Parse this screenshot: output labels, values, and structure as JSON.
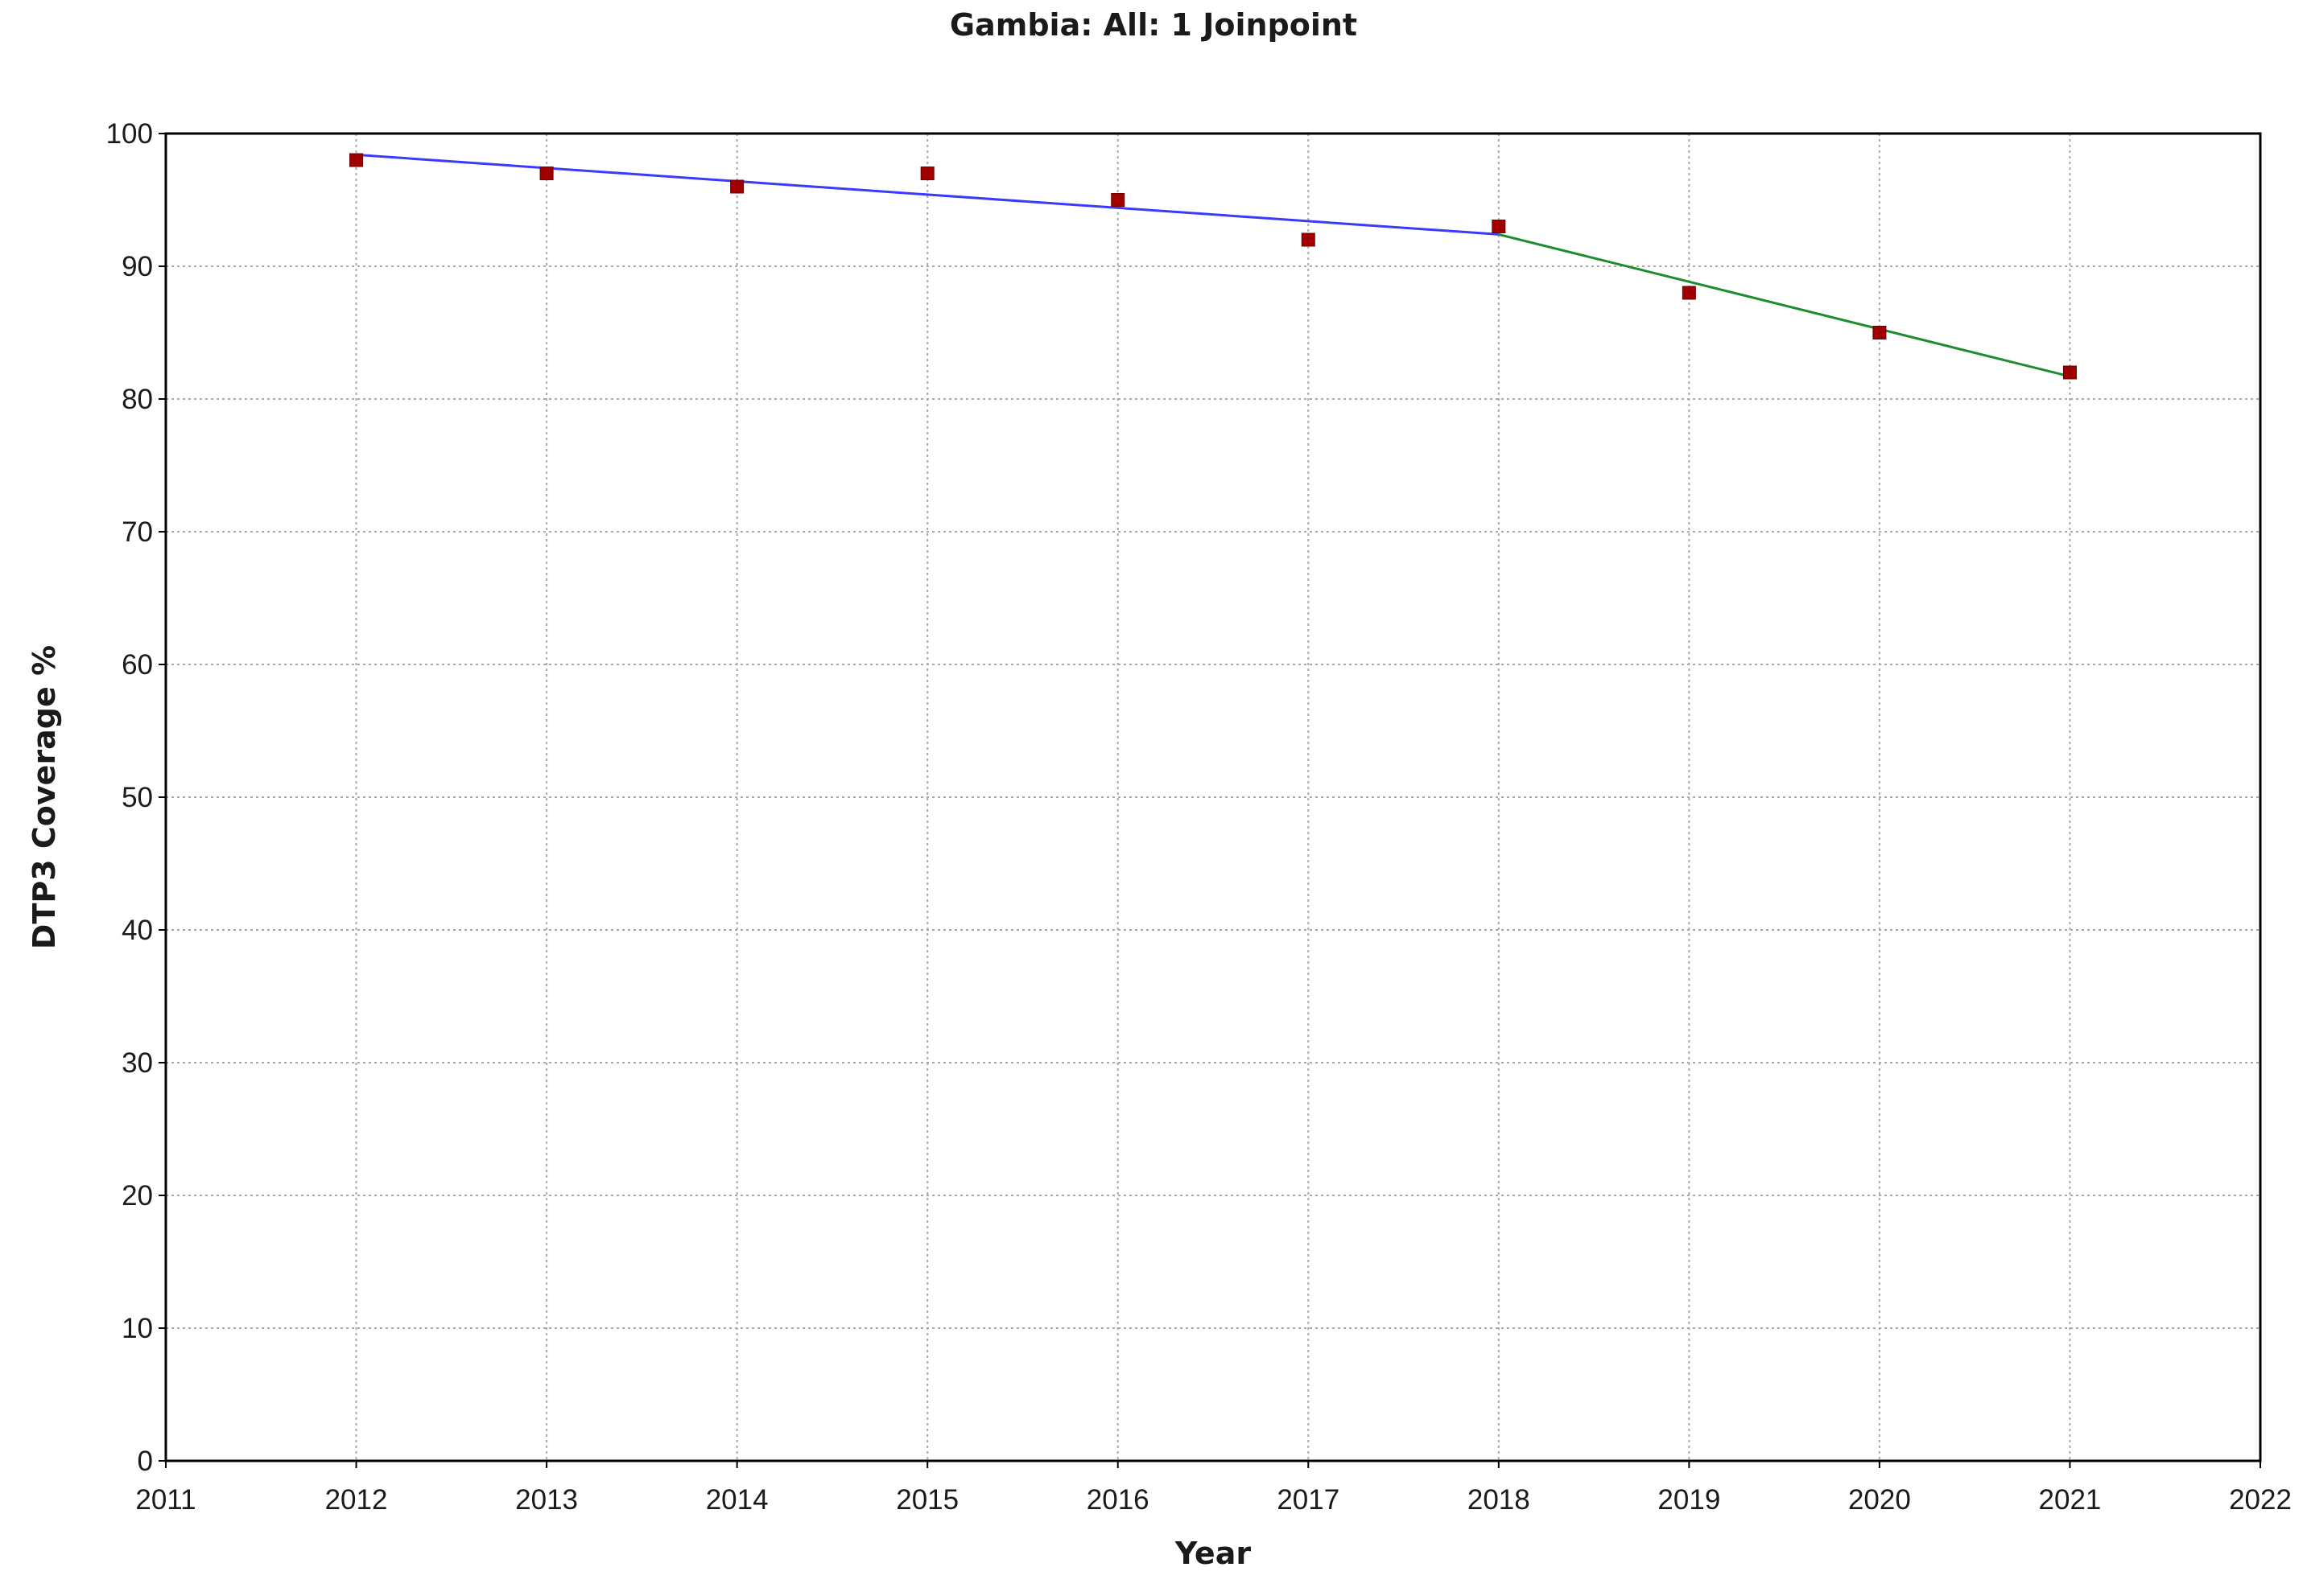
{
  "chart_data": {
    "type": "line",
    "title": "Gambia: All: 1 Joinpoint",
    "xlabel": "Year",
    "ylabel": "DTP3 Coverage %",
    "xlim": [
      2011,
      2022
    ],
    "ylim": [
      0,
      100
    ],
    "x_ticks": [
      2011,
      2012,
      2013,
      2014,
      2015,
      2016,
      2017,
      2018,
      2019,
      2020,
      2021,
      2022
    ],
    "y_ticks": [
      0,
      10,
      20,
      30,
      40,
      50,
      60,
      70,
      80,
      90,
      100
    ],
    "grid": true,
    "observed": {
      "marker": "square",
      "color": "#a00000",
      "x": [
        2012,
        2013,
        2014,
        2015,
        2016,
        2017,
        2018,
        2019,
        2020,
        2021
      ],
      "y": [
        98,
        97,
        96,
        97,
        95,
        92,
        93,
        88,
        85,
        82
      ]
    },
    "segments": [
      {
        "color": "#3a3aff",
        "x": [
          2012,
          2018
        ],
        "y": [
          98.4,
          92.4
        ]
      },
      {
        "color": "#1e8c2e",
        "x": [
          2018,
          2021
        ],
        "y": [
          92.4,
          81.7
        ]
      }
    ]
  }
}
